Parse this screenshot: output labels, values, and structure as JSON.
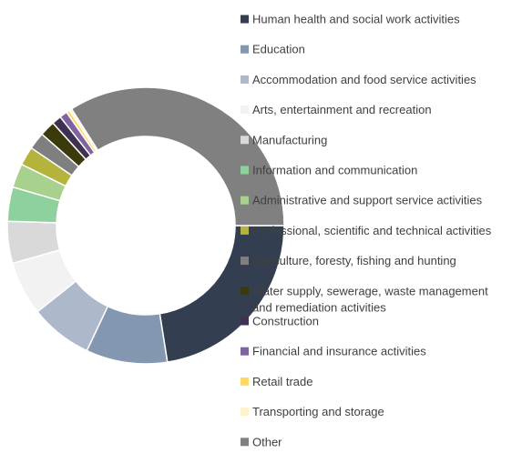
{
  "chart_data": {
    "type": "pie",
    "variant": "donut",
    "legend_position": "right",
    "series": [
      {
        "name": "Human health and social work activities",
        "value": 22.5,
        "color": "#333f50"
      },
      {
        "name": "Education",
        "value": 9.5,
        "color": "#8497b0"
      },
      {
        "name": "Accommodation and food service activities",
        "value": 7.3,
        "color": "#adb9ca"
      },
      {
        "name": "Arts, entertainment and recreation",
        "value": 6.3,
        "color": "#f2f2f2"
      },
      {
        "name": "Manufacturing",
        "value": 4.9,
        "color": "#d9d9d9"
      },
      {
        "name": "Information and communication",
        "value": 4.0,
        "color": "#8fd19e"
      },
      {
        "name": "Administrative and support service activities",
        "value": 2.8,
        "color": "#a9d18e"
      },
      {
        "name": "Professional, scientific and technical activities",
        "value": 2.2,
        "color": "#b4b43c"
      },
      {
        "name": "Agriculture, foresty, fishing and hunting",
        "value": 2.0,
        "color": "#7f7f7f"
      },
      {
        "name": "Water supply, sewerage, waste management and remediation activities",
        "value": 1.8,
        "color": "#3a3a0a"
      },
      {
        "name": "Construction",
        "value": 1.1,
        "color": "#3f3151"
      },
      {
        "name": "Financial and insurance activities",
        "value": 0.9,
        "color": "#8064a2"
      },
      {
        "name": "Retail trade",
        "value": 0.4,
        "color": "#ffd966"
      },
      {
        "name": "Transporting and storage",
        "value": 0.3,
        "color": "#fff2cc"
      },
      {
        "name": "Other",
        "value": 34.0,
        "color": "#808080"
      }
    ]
  }
}
